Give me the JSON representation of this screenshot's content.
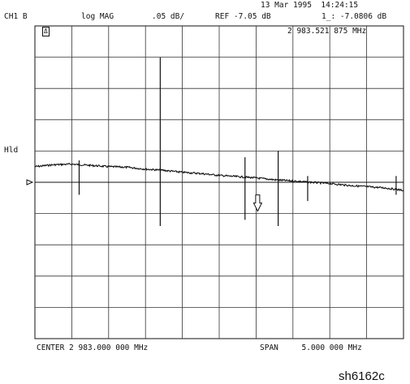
{
  "header": {
    "date_time": "13 Mar 1995  14:24:15",
    "channel": "CH1 B",
    "format": "log MAG",
    "scale": ".05 dB/",
    "reference": "REF -7.05 dB",
    "marker_readout": "1_: -7.0806 dB",
    "marker_freq": "2 983.521 875 MHz",
    "cal_indicator": "Δ",
    "hold": "Hld"
  },
  "footer": {
    "center": "CENTER 2 983.000 000 MHz",
    "span": "SPAN     5.000 000 MHz"
  },
  "figure_id": "sh6162c",
  "chart_data": {
    "type": "line",
    "x_unit": "MHz",
    "y_unit": "dB",
    "xlim": [
      2980.5,
      2985.5
    ],
    "ylim": [
      -7.3,
      -6.8
    ],
    "reference_level": -7.05,
    "grid": true,
    "divisions": {
      "x": 10,
      "y": 10
    },
    "trace_color": "#111111",
    "series": [
      {
        "x": [
          2980.5,
          2980.75,
          2981.0,
          2981.25,
          2981.5,
          2981.75,
          2982.0,
          2982.25,
          2982.5,
          2982.75,
          2983.0,
          2983.25,
          2983.5,
          2983.75,
          2984.0,
          2984.25,
          2984.5,
          2984.75,
          2985.0,
          2985.25,
          2985.5
        ],
        "values": [
          -7.025,
          -7.022,
          -7.021,
          -7.023,
          -7.025,
          -7.026,
          -7.029,
          -7.031,
          -7.034,
          -7.036,
          -7.039,
          -7.041,
          -7.043,
          -7.046,
          -7.048,
          -7.05,
          -7.052,
          -7.055,
          -7.057,
          -7.059,
          -7.063
        ]
      }
    ],
    "spikes": [
      {
        "x": 2981.1,
        "values": [
          -7.015,
          -7.07
        ]
      },
      {
        "x": 2982.2,
        "values": [
          -6.85,
          -7.12
        ]
      },
      {
        "x": 2983.35,
        "values": [
          -7.01,
          -7.11
        ]
      },
      {
        "x": 2983.8,
        "values": [
          -7.0,
          -7.12
        ]
      },
      {
        "x": 2984.2,
        "values": [
          -7.04,
          -7.08
        ]
      },
      {
        "x": 2985.4,
        "values": [
          -7.04,
          -7.07
        ]
      }
    ],
    "marker": {
      "x": 2983.5219,
      "y": -7.0806,
      "label": "1"
    }
  }
}
